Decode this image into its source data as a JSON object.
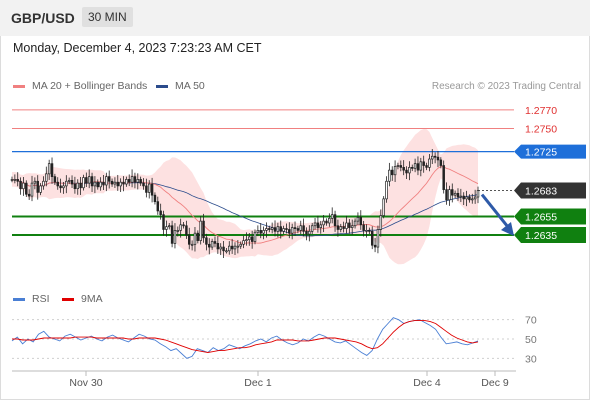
{
  "header": {
    "symbol": "GBP/USD",
    "timeframe": "30 MIN",
    "datetime": "Monday, December 4, 2023 7:23:23 AM CET"
  },
  "legend": {
    "ma20": "MA 20 + Bollinger Bands",
    "ma50": "MA 50",
    "rsi": "RSI",
    "rsi_ma": "9MA",
    "copyright": "Research © 2023 Trading Central"
  },
  "colors": {
    "ma20": "#f08080",
    "ma50": "#2b4c8c",
    "bands_fill": "#fde1e1",
    "resistance": "#f08080",
    "pivot": "#1e6fd9",
    "support": "#108010",
    "last_price": "#333333",
    "rsi": "#4a7fd4",
    "rsi_ma": "#e00000",
    "arrow": "#2e5aa8"
  },
  "chart_data": [
    {
      "type": "candlestick",
      "x_ticks": [
        "Nov 30",
        "Dec 1",
        "Dec 4",
        "Dec 9"
      ],
      "ylim": [
        1.258,
        1.2785
      ],
      "price_levels": [
        {
          "value": 1.277,
          "label": "1.2770",
          "kind": "resistance"
        },
        {
          "value": 1.275,
          "label": "1.2750",
          "kind": "resistance"
        },
        {
          "value": 1.2725,
          "label": "1.2725",
          "kind": "pivot"
        },
        {
          "value": 1.2683,
          "label": "1.2683",
          "kind": "last"
        },
        {
          "value": 1.2655,
          "label": "1.2655",
          "kind": "support"
        },
        {
          "value": 1.2635,
          "label": "1.2635",
          "kind": "support"
        }
      ],
      "closes": [
        1.2695,
        1.2695,
        1.2693,
        1.2685,
        1.2691,
        1.2679,
        1.2677,
        1.2691,
        1.2693,
        1.2681,
        1.2688,
        1.2693,
        1.2701,
        1.2712,
        1.2698,
        1.2692,
        1.2688,
        1.2686,
        1.2688,
        1.2693,
        1.2694,
        1.269,
        1.2685,
        1.2691,
        1.2686,
        1.2697,
        1.2691,
        1.2698,
        1.2688,
        1.2692,
        1.2687,
        1.2692,
        1.2689,
        1.2698,
        1.2693,
        1.269,
        1.2692,
        1.2688,
        1.2692,
        1.269,
        1.2695,
        1.2692,
        1.2698,
        1.2692,
        1.2695,
        1.2691,
        1.2688,
        1.2681,
        1.269,
        1.2678,
        1.2671,
        1.2661,
        1.2657,
        1.2641,
        1.2644,
        1.2645,
        1.2626,
        1.264,
        1.264,
        1.2646,
        1.2645,
        1.2635,
        1.2625,
        1.2625,
        1.2637,
        1.2629,
        1.265,
        1.2632,
        1.2625,
        1.2622,
        1.2628,
        1.2626,
        1.262,
        1.2622,
        1.2618,
        1.2618,
        1.2623,
        1.262,
        1.2623,
        1.2623,
        1.2625,
        1.2629,
        1.263,
        1.2633,
        1.2628,
        1.2638,
        1.264,
        1.2637,
        1.264,
        1.2642,
        1.2641,
        1.2643,
        1.2639,
        1.2644,
        1.2639,
        1.2642,
        1.2641,
        1.2637,
        1.2643,
        1.2642,
        1.264,
        1.2645,
        1.2639,
        1.2636,
        1.2639,
        1.2645,
        1.2648,
        1.2643,
        1.2646,
        1.265,
        1.2648,
        1.2653,
        1.2657,
        1.2645,
        1.2641,
        1.2644,
        1.2642,
        1.2648,
        1.2643,
        1.2645,
        1.265,
        1.2654,
        1.2646,
        1.264,
        1.264,
        1.2639,
        1.2624,
        1.2622,
        1.2641,
        1.2656,
        1.2674,
        1.2693,
        1.2705,
        1.27,
        1.2709,
        1.271,
        1.2708,
        1.2705,
        1.2702,
        1.2708,
        1.2707,
        1.2712,
        1.2705,
        1.2714,
        1.271,
        1.2708,
        1.2717,
        1.272,
        1.2719,
        1.2716,
        1.271,
        1.2684,
        1.2673,
        1.2684,
        1.2678,
        1.268,
        1.2676,
        1.2677,
        1.2674,
        1.2676,
        1.2673,
        1.2674,
        1.2676,
        1.2683
      ]
    },
    {
      "type": "line",
      "name": "RSI",
      "ticks": [
        70,
        50,
        30
      ],
      "ylim": [
        20,
        80
      ],
      "series": [
        {
          "name": "RSI",
          "values": [
            48,
            52,
            45,
            50,
            47,
            55,
            58,
            52,
            50,
            48,
            53,
            55,
            52,
            49,
            51,
            53,
            50,
            48,
            52,
            54,
            51,
            49,
            47,
            51,
            55,
            53,
            50,
            49,
            45,
            42,
            38,
            40,
            35,
            30,
            32,
            40,
            38,
            36,
            41,
            38,
            40,
            44,
            42,
            40,
            43,
            45,
            48,
            50,
            47,
            51,
            53,
            49,
            46,
            44,
            46,
            50,
            48,
            52,
            55,
            53,
            50,
            47,
            46,
            48,
            44,
            40,
            36,
            33,
            38,
            50,
            60,
            66,
            72,
            70,
            66,
            68,
            69,
            70,
            67,
            64,
            60,
            52,
            45,
            46,
            47,
            45,
            44,
            46,
            48
          ]
        },
        {
          "name": "9MA",
          "values": [
            50,
            50,
            49,
            49,
            49,
            50,
            51,
            51,
            51,
            51,
            51,
            51,
            52,
            52,
            52,
            52,
            51,
            51,
            51,
            51,
            51,
            51,
            50,
            50,
            51,
            51,
            51,
            51,
            50,
            49,
            47,
            45,
            43,
            41,
            39,
            38,
            37,
            36,
            37,
            38,
            38,
            39,
            40,
            41,
            41,
            42,
            44,
            45,
            46,
            47,
            49,
            49,
            49,
            49,
            48,
            48,
            48,
            49,
            50,
            51,
            51,
            51,
            50,
            49,
            48,
            47,
            45,
            42,
            40,
            41,
            45,
            51,
            57,
            62,
            66,
            68,
            69,
            69,
            69,
            68,
            66,
            62,
            58,
            54,
            51,
            49,
            47,
            46,
            47
          ]
        }
      ]
    }
  ]
}
